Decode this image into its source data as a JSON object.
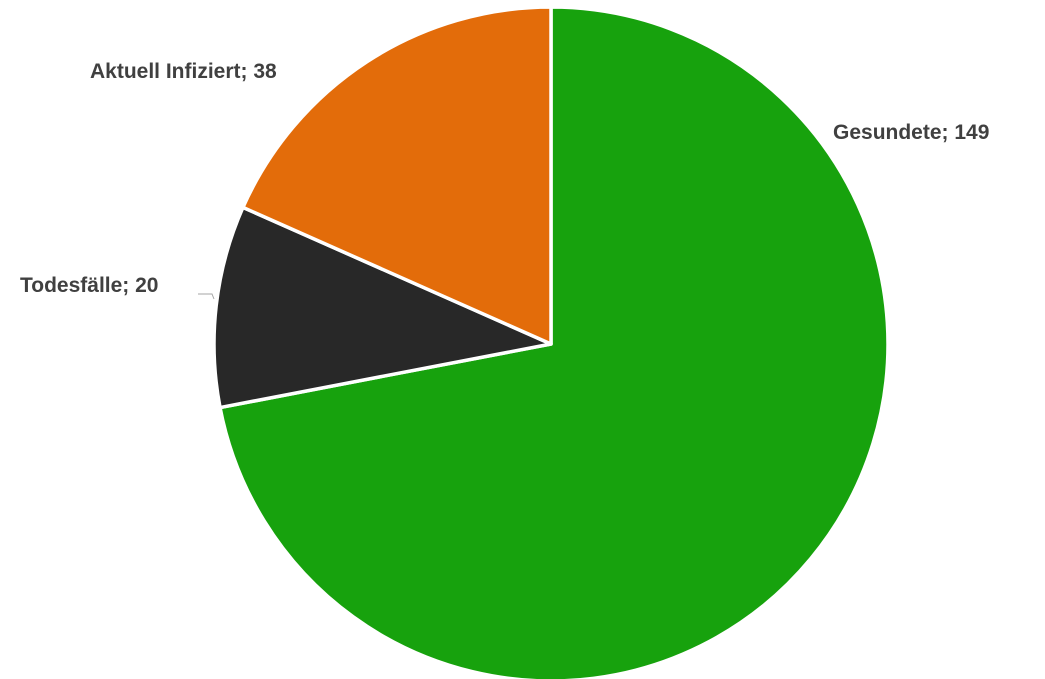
{
  "chart_data": {
    "type": "pie",
    "title": "",
    "separator": "; ",
    "slices": [
      {
        "label": "Gesundete",
        "value": 149,
        "color": "#17a20d"
      },
      {
        "label": "Todesfälle",
        "value": 20,
        "color": "#282828"
      },
      {
        "label": "Aktuell Infiziert",
        "value": 38,
        "color": "#e36c0a"
      }
    ],
    "data_labels": {
      "gesundete": "Gesundete; 149",
      "todesfaelle": "Todesfälle; 20",
      "aktuell_infiziert": "Aktuell Infiziert; 38"
    },
    "legend": "none",
    "label_color": "#404040"
  }
}
